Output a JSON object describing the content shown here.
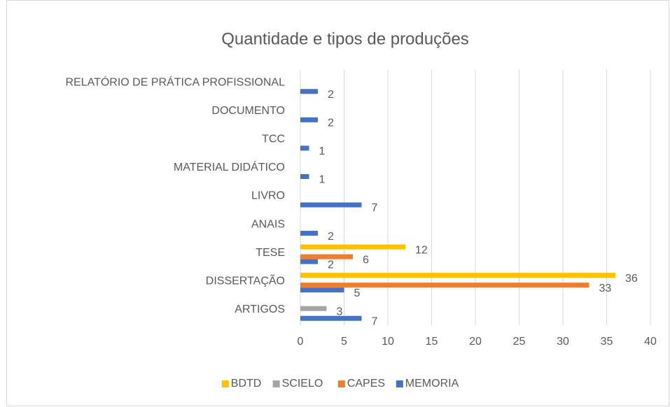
{
  "chart_data": {
    "type": "barh",
    "title": "Quantidade e tipos de produções",
    "categories": [
      "ARTIGOS",
      "DISSERTAÇÃO",
      "TESE",
      "ANAIS",
      "LIVRO",
      "MATERIAL DIDÁTICO",
      "TCC",
      "DOCUMENTO",
      "RELATÓRIO DE PRÁTICA PROFISSIONAL"
    ],
    "series": [
      {
        "name": "MEMORIA",
        "color": "#4472c4",
        "values": [
          7,
          5,
          2,
          2,
          7,
          1,
          1,
          2,
          2
        ]
      },
      {
        "name": "CAPES",
        "color": "#ed7d31",
        "values": [
          null,
          33,
          6,
          null,
          null,
          null,
          null,
          null,
          null
        ]
      },
      {
        "name": "SCIELO",
        "color": "#a5a5a5",
        "values": [
          3,
          null,
          null,
          null,
          null,
          null,
          null,
          null,
          null
        ]
      },
      {
        "name": "BDTD",
        "color": "#ffc000",
        "values": [
          null,
          36,
          12,
          null,
          null,
          null,
          null,
          null,
          null
        ]
      }
    ],
    "xlim": [
      0,
      40
    ],
    "xticks": [
      0,
      5,
      10,
      15,
      20,
      25,
      30,
      35,
      40
    ],
    "grid": true,
    "legend": "bottom"
  }
}
